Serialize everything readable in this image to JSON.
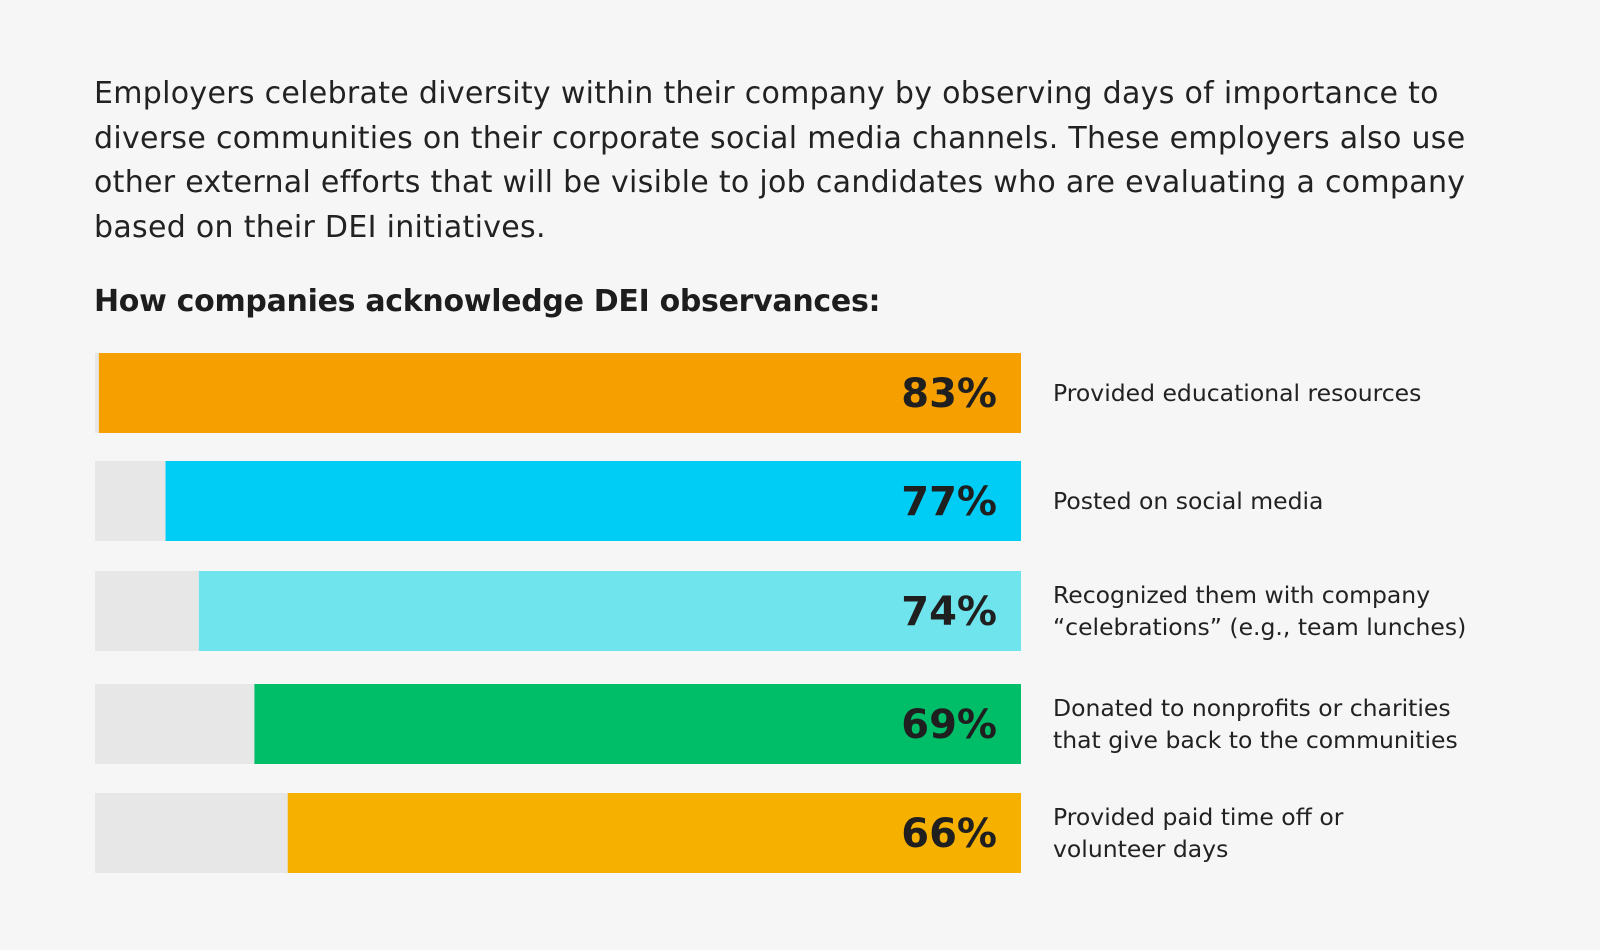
{
  "intro": {
    "text": "Employers celebrate diversity within their company by observing days of importance to diverse communities on their corporate social media channels. These employers also use other external efforts that will be visible to job candidates who are evaluating a company based on their DEI initiatives."
  },
  "chart_data": {
    "type": "bar",
    "orientation": "horizontal",
    "title": "How companies acknowledge DEI observances:",
    "xlabel": "",
    "ylabel": "",
    "xlim": [
      0,
      100
    ],
    "grid": false,
    "legend": "none",
    "colors": {
      "track": "#e7e7e7",
      "text": "#1f1f1f"
    },
    "bars": [
      {
        "label_lines": [
          "Provided educational resources"
        ],
        "value": 83,
        "value_label": "83%",
        "color": "#f59f00"
      },
      {
        "label_lines": [
          "Posted on social media"
        ],
        "value": 77,
        "value_label": "77%",
        "color": "#00cdf5"
      },
      {
        "label_lines": [
          "Recognized them with company",
          "“celebrations” (e.g., team lunches)"
        ],
        "value": 74,
        "value_label": "74%",
        "color": "#6fe4ec"
      },
      {
        "label_lines": [
          "Donated to nonprofits or charities",
          "that give back to the communities"
        ],
        "value": 69,
        "value_label": "69%",
        "color": "#00bd68"
      },
      {
        "label_lines": [
          "Provided paid time off or",
          "volunteer days"
        ],
        "value": 66,
        "value_label": "66%",
        "color": "#f5b000"
      }
    ]
  }
}
